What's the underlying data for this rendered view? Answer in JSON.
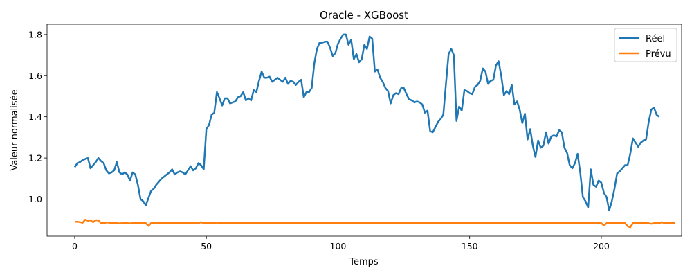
{
  "chart_data": {
    "type": "line",
    "title": "Oracle - XGBoost",
    "xlabel": "Temps",
    "ylabel": "Valeur normalisée",
    "xlim": [
      -10.5,
      230.5
    ],
    "ylim": [
      0.82,
      1.85
    ],
    "xticks": [
      0,
      50,
      100,
      150,
      200
    ],
    "yticks": [
      1.0,
      1.2,
      1.4,
      1.6,
      1.8
    ],
    "ytick_labels": [
      "1.0",
      "1.2",
      "1.4",
      "1.6",
      "1.8"
    ],
    "grid": false,
    "legend_position": "top-right",
    "series": [
      {
        "name": "Réel",
        "color": "#1f77b4",
        "x_start": 0,
        "values": [
          1.155,
          1.175,
          1.18,
          1.19,
          1.195,
          1.2,
          1.15,
          1.165,
          1.18,
          1.2,
          1.185,
          1.175,
          1.14,
          1.125,
          1.13,
          1.14,
          1.18,
          1.13,
          1.12,
          1.13,
          1.12,
          1.09,
          1.13,
          1.12,
          1.07,
          1.0,
          0.99,
          0.97,
          1.005,
          1.04,
          1.05,
          1.07,
          1.085,
          1.1,
          1.11,
          1.12,
          1.13,
          1.145,
          1.12,
          1.13,
          1.135,
          1.13,
          1.12,
          1.14,
          1.16,
          1.14,
          1.15,
          1.175,
          1.165,
          1.145,
          1.34,
          1.36,
          1.41,
          1.42,
          1.52,
          1.49,
          1.455,
          1.49,
          1.49,
          1.465,
          1.47,
          1.475,
          1.495,
          1.5,
          1.52,
          1.48,
          1.49,
          1.48,
          1.53,
          1.52,
          1.575,
          1.62,
          1.59,
          1.59,
          1.595,
          1.57,
          1.58,
          1.59,
          1.58,
          1.57,
          1.59,
          1.56,
          1.575,
          1.57,
          1.555,
          1.57,
          1.58,
          1.495,
          1.52,
          1.52,
          1.54,
          1.66,
          1.73,
          1.76,
          1.76,
          1.765,
          1.765,
          1.735,
          1.695,
          1.71,
          1.755,
          1.78,
          1.8,
          1.8,
          1.75,
          1.775,
          1.68,
          1.705,
          1.665,
          1.68,
          1.75,
          1.73,
          1.79,
          1.78,
          1.62,
          1.63,
          1.59,
          1.57,
          1.54,
          1.525,
          1.465,
          1.505,
          1.515,
          1.51,
          1.54,
          1.54,
          1.51,
          1.485,
          1.48,
          1.47,
          1.475,
          1.47,
          1.46,
          1.42,
          1.43,
          1.33,
          1.325,
          1.35,
          1.375,
          1.39,
          1.41,
          1.56,
          1.705,
          1.73,
          1.7,
          1.38,
          1.45,
          1.43,
          1.53,
          1.525,
          1.515,
          1.51,
          1.545,
          1.555,
          1.575,
          1.635,
          1.62,
          1.56,
          1.575,
          1.58,
          1.65,
          1.67,
          1.6,
          1.505,
          1.525,
          1.51,
          1.555,
          1.46,
          1.475,
          1.435,
          1.37,
          1.415,
          1.29,
          1.34,
          1.26,
          1.205,
          1.285,
          1.25,
          1.26,
          1.325,
          1.27,
          1.305,
          1.31,
          1.305,
          1.335,
          1.325,
          1.25,
          1.225,
          1.165,
          1.15,
          1.175,
          1.22,
          1.13,
          1.01,
          0.99,
          0.96,
          1.145,
          1.07,
          1.06,
          1.09,
          1.08,
          1.03,
          1.01,
          0.945,
          0.99,
          1.05,
          1.125,
          1.135,
          1.15,
          1.165,
          1.165,
          1.22,
          1.295,
          1.275,
          1.255,
          1.275,
          1.285,
          1.29,
          1.375,
          1.435,
          1.445,
          1.41,
          1.4
        ]
      },
      {
        "name": "Prévu",
        "color": "#ff7f0e",
        "x_start": 0,
        "values": [
          0.89,
          0.89,
          0.888,
          0.885,
          0.9,
          0.895,
          0.897,
          0.888,
          0.897,
          0.897,
          0.883,
          0.883,
          0.886,
          0.886,
          0.883,
          0.883,
          0.883,
          0.882,
          0.883,
          0.883,
          0.883,
          0.882,
          0.883,
          0.883,
          0.883,
          0.883,
          0.883,
          0.883,
          0.87,
          0.883,
          0.883,
          0.883,
          0.883,
          0.883,
          0.883,
          0.883,
          0.883,
          0.883,
          0.883,
          0.883,
          0.883,
          0.883,
          0.883,
          0.883,
          0.883,
          0.883,
          0.883,
          0.883,
          0.888,
          0.883,
          0.883,
          0.883,
          0.883,
          0.883,
          0.886,
          0.883,
          0.883,
          0.883,
          0.883,
          0.883,
          0.883,
          0.883,
          0.883,
          0.883,
          0.883,
          0.883,
          0.883,
          0.883,
          0.883,
          0.883,
          0.883,
          0.883,
          0.883,
          0.883,
          0.883,
          0.883,
          0.883,
          0.883,
          0.883,
          0.883,
          0.883,
          0.883,
          0.883,
          0.883,
          0.883,
          0.883,
          0.883,
          0.883,
          0.883,
          0.883,
          0.883,
          0.883,
          0.883,
          0.883,
          0.883,
          0.883,
          0.883,
          0.883,
          0.883,
          0.883,
          0.883,
          0.883,
          0.883,
          0.883,
          0.883,
          0.883,
          0.883,
          0.883,
          0.883,
          0.883,
          0.883,
          0.883,
          0.883,
          0.883,
          0.883,
          0.883,
          0.883,
          0.883,
          0.883,
          0.883,
          0.883,
          0.883,
          0.883,
          0.883,
          0.883,
          0.883,
          0.883,
          0.883,
          0.883,
          0.883,
          0.883,
          0.883,
          0.883,
          0.883,
          0.883,
          0.883,
          0.883,
          0.883,
          0.883,
          0.883,
          0.883,
          0.883,
          0.883,
          0.883,
          0.883,
          0.883,
          0.883,
          0.883,
          0.883,
          0.883,
          0.883,
          0.883,
          0.883,
          0.883,
          0.883,
          0.883,
          0.883,
          0.883,
          0.883,
          0.883,
          0.883,
          0.883,
          0.883,
          0.883,
          0.883,
          0.883,
          0.883,
          0.883,
          0.883,
          0.883,
          0.883,
          0.883,
          0.883,
          0.883,
          0.883,
          0.883,
          0.883,
          0.883,
          0.883,
          0.883,
          0.883,
          0.883,
          0.883,
          0.883,
          0.883,
          0.883,
          0.883,
          0.883,
          0.883,
          0.883,
          0.883,
          0.883,
          0.883,
          0.883,
          0.883,
          0.883,
          0.883,
          0.883,
          0.883,
          0.883,
          0.883,
          0.872,
          0.883,
          0.883,
          0.883,
          0.883,
          0.883,
          0.883,
          0.883,
          0.883,
          0.868,
          0.863,
          0.883,
          0.883,
          0.883,
          0.883,
          0.883,
          0.883,
          0.883,
          0.88,
          0.883,
          0.883,
          0.883,
          0.888,
          0.883,
          0.883,
          0.883,
          0.883,
          0.883
        ]
      }
    ]
  }
}
